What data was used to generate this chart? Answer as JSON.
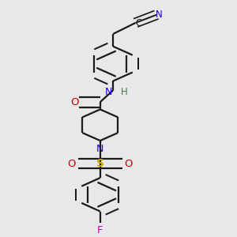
{
  "bg_color": "#e8e8e8",
  "bond_color": "#1a1a1a",
  "bond_width": 1.6,
  "colors": {
    "C": "#1a1a1a",
    "N_blue": "#1a00cc",
    "O": "#cc0000",
    "S": "#ccaa00",
    "F": "#cc00cc",
    "H": "#4a7a4a"
  },
  "xlim": [
    0.05,
    0.95
  ],
  "ylim": [
    0.0,
    1.0
  ],
  "figsize": [
    3.0,
    3.0
  ],
  "dpi": 100
}
